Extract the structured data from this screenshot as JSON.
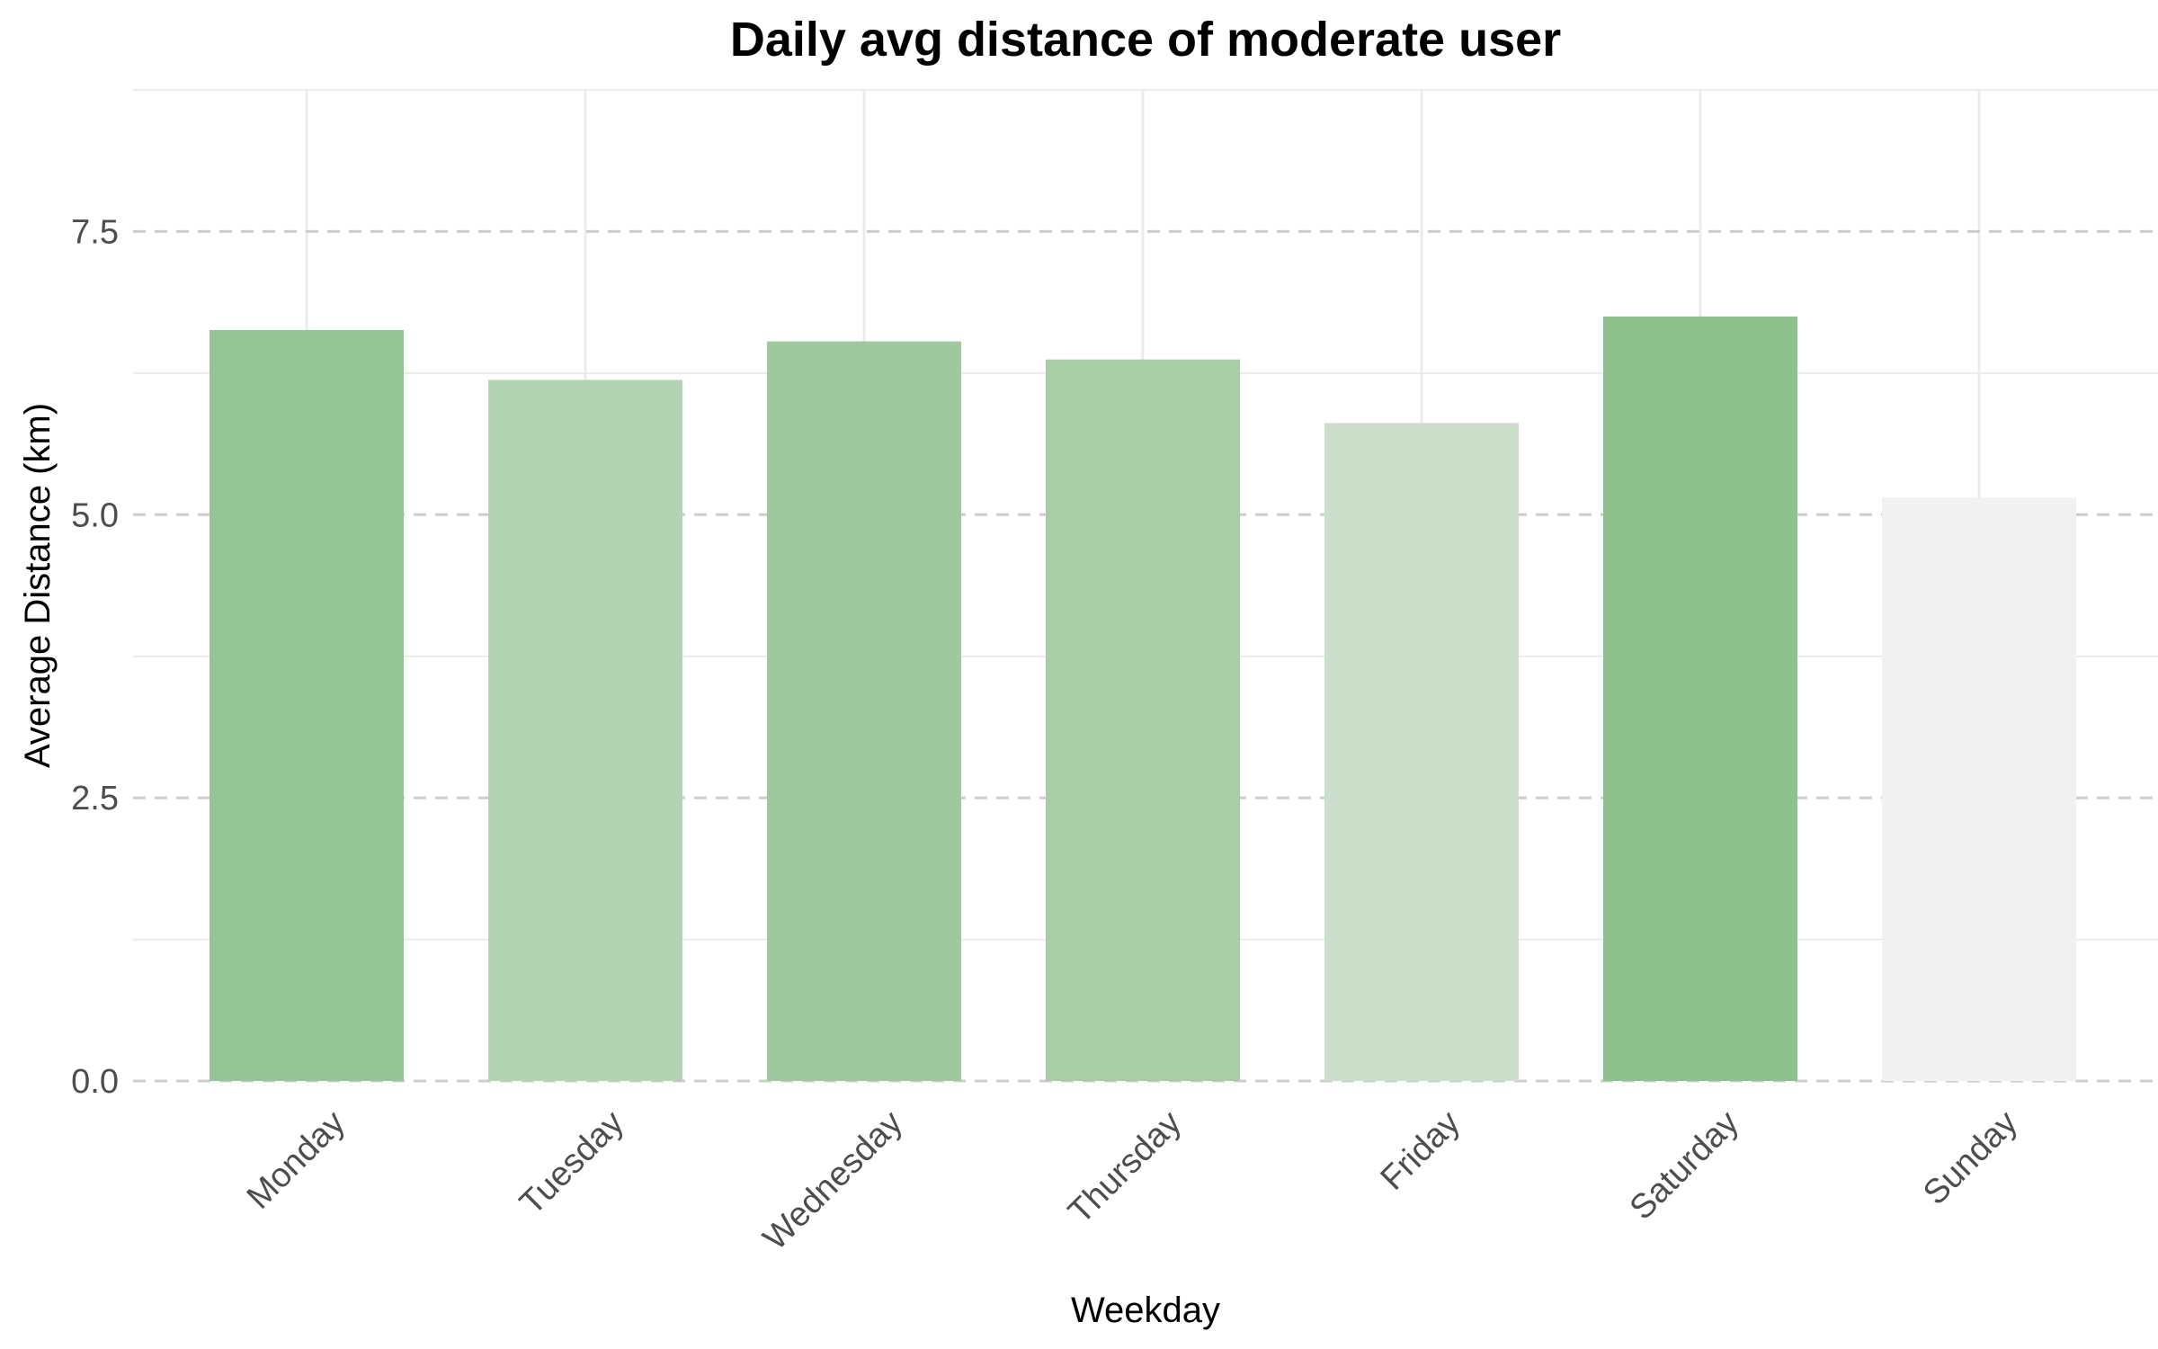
{
  "chart_data": {
    "type": "bar",
    "title": "Daily avg distance of moderate user",
    "xlabel": "Weekday",
    "ylabel": "Average Distance (km)",
    "categories": [
      "Monday",
      "Tuesday",
      "Wednesday",
      "Thursday",
      "Friday",
      "Saturday",
      "Sunday"
    ],
    "values": [
      6.63,
      6.19,
      6.53,
      6.37,
      5.81,
      6.75,
      5.15
    ],
    "bar_colors": [
      "#96c496",
      "#b3d3b2",
      "#9fc89e",
      "#a8cca6",
      "#cbdfca",
      "#8ec18e",
      "#f1f1f1"
    ],
    "ylim": [
      0,
      8.75
    ],
    "yticks": [
      0,
      2.5,
      5,
      7.5
    ],
    "ytick_labels": [
      "0.0",
      "2.5",
      "5.0",
      "7.5"
    ],
    "grid": true,
    "legend": "none"
  }
}
